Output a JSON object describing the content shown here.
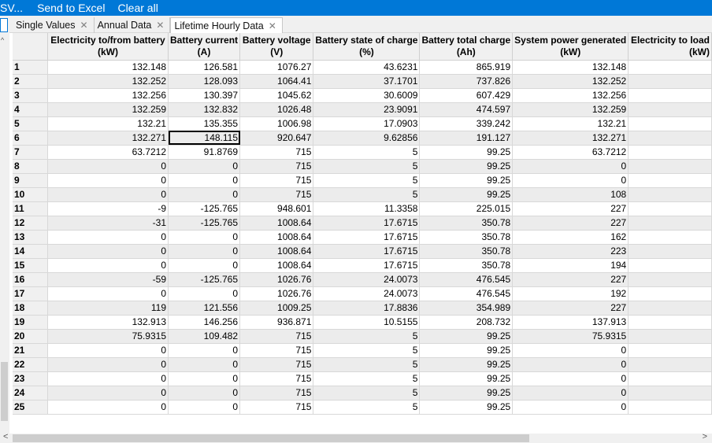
{
  "toolbar": {
    "item1": "SV...",
    "item2": "Send to Excel",
    "item3": "Clear all"
  },
  "tabs": [
    {
      "label": "Single Values",
      "close": "✕"
    },
    {
      "label": "Annual Data",
      "close": "✕"
    },
    {
      "label": "Lifetime Hourly Data",
      "close": "✕"
    }
  ],
  "columns": [
    {
      "line1": "Electricity to/from battery",
      "line2": "(kW)"
    },
    {
      "line1": "Battery current",
      "line2": "(A)"
    },
    {
      "line1": "Battery voltage",
      "line2": "(V)"
    },
    {
      "line1": "Battery state of charge",
      "line2": "(%)"
    },
    {
      "line1": "Battery total charge",
      "line2": "(Ah)"
    },
    {
      "line1": "System power generated",
      "line2": "(kW)"
    },
    {
      "line1": "Electricity to load",
      "line2": "(kW)"
    }
  ],
  "rows": [
    {
      "n": "1",
      "v": [
        "132.148",
        "126.581",
        "1076.27",
        "43.6231",
        "865.919",
        "132.148",
        ""
      ]
    },
    {
      "n": "2",
      "v": [
        "132.252",
        "128.093",
        "1064.41",
        "37.1701",
        "737.826",
        "132.252",
        ""
      ]
    },
    {
      "n": "3",
      "v": [
        "132.256",
        "130.397",
        "1045.62",
        "30.6009",
        "607.429",
        "132.256",
        ""
      ]
    },
    {
      "n": "4",
      "v": [
        "132.259",
        "132.832",
        "1026.48",
        "23.9091",
        "474.597",
        "132.259",
        ""
      ]
    },
    {
      "n": "5",
      "v": [
        "132.21",
        "135.355",
        "1006.98",
        "17.0903",
        "339.242",
        "132.21",
        ""
      ]
    },
    {
      "n": "6",
      "v": [
        "132.271",
        "148.115",
        "920.647",
        "9.62856",
        "191.127",
        "132.271",
        ""
      ]
    },
    {
      "n": "7",
      "v": [
        "63.7212",
        "91.8769",
        "715",
        "5",
        "99.25",
        "63.7212",
        ""
      ]
    },
    {
      "n": "8",
      "v": [
        "0",
        "0",
        "715",
        "5",
        "99.25",
        "0",
        ""
      ]
    },
    {
      "n": "9",
      "v": [
        "0",
        "0",
        "715",
        "5",
        "99.25",
        "0",
        ""
      ]
    },
    {
      "n": "10",
      "v": [
        "0",
        "0",
        "715",
        "5",
        "99.25",
        "108",
        ""
      ]
    },
    {
      "n": "11",
      "v": [
        "-9",
        "-125.765",
        "948.601",
        "11.3358",
        "225.015",
        "227",
        ""
      ]
    },
    {
      "n": "12",
      "v": [
        "-31",
        "-125.765",
        "1008.64",
        "17.6715",
        "350.78",
        "227",
        ""
      ]
    },
    {
      "n": "13",
      "v": [
        "0",
        "0",
        "1008.64",
        "17.6715",
        "350.78",
        "162",
        ""
      ]
    },
    {
      "n": "14",
      "v": [
        "0",
        "0",
        "1008.64",
        "17.6715",
        "350.78",
        "223",
        ""
      ]
    },
    {
      "n": "15",
      "v": [
        "0",
        "0",
        "1008.64",
        "17.6715",
        "350.78",
        "194",
        ""
      ]
    },
    {
      "n": "16",
      "v": [
        "-59",
        "-125.765",
        "1026.76",
        "24.0073",
        "476.545",
        "227",
        ""
      ]
    },
    {
      "n": "17",
      "v": [
        "0",
        "0",
        "1026.76",
        "24.0073",
        "476.545",
        "192",
        ""
      ]
    },
    {
      "n": "18",
      "v": [
        "119",
        "121.556",
        "1009.25",
        "17.8836",
        "354.989",
        "227",
        ""
      ]
    },
    {
      "n": "19",
      "v": [
        "132.913",
        "146.256",
        "936.871",
        "10.5155",
        "208.732",
        "137.913",
        ""
      ]
    },
    {
      "n": "20",
      "v": [
        "75.9315",
        "109.482",
        "715",
        "5",
        "99.25",
        "75.9315",
        ""
      ]
    },
    {
      "n": "21",
      "v": [
        "0",
        "0",
        "715",
        "5",
        "99.25",
        "0",
        ""
      ]
    },
    {
      "n": "22",
      "v": [
        "0",
        "0",
        "715",
        "5",
        "99.25",
        "0",
        ""
      ]
    },
    {
      "n": "23",
      "v": [
        "0",
        "0",
        "715",
        "5",
        "99.25",
        "0",
        ""
      ]
    },
    {
      "n": "24",
      "v": [
        "0",
        "0",
        "715",
        "5",
        "99.25",
        "0",
        ""
      ]
    },
    {
      "n": "25",
      "v": [
        "0",
        "0",
        "715",
        "5",
        "99.25",
        "0",
        ""
      ]
    }
  ],
  "icons": {
    "scroll_left": "<",
    "scroll_right": ">",
    "scroll_up": "^",
    "scroll_down": "v"
  }
}
